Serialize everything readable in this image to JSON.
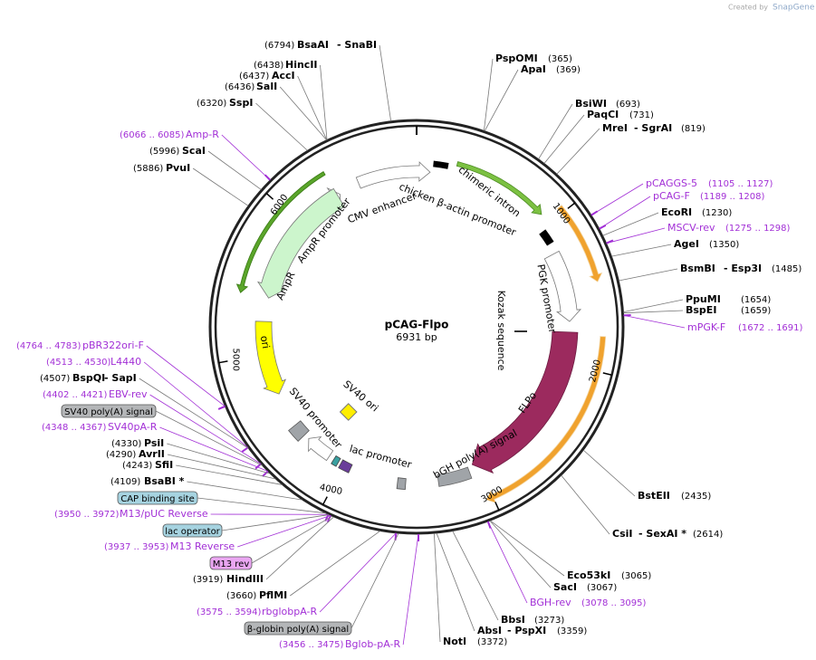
{
  "header": {
    "credit": "Created by",
    "brand": "SnapGene"
  },
  "map": {
    "name": "pCAG-Flpo",
    "length": "6931 bp",
    "ticks": [
      1000,
      2000,
      3000,
      4000,
      5000,
      6000
    ],
    "features": [
      "chicken β-actin promoter",
      "chimeric intron",
      "CMV enhancer",
      "AmpR promoter",
      "AmpR",
      "ori",
      "SV40 ori",
      "SV40 promoter",
      "lac promoter",
      "bGH poly(A) signal",
      "FLPo",
      "Kozak sequence",
      "PGK promoter"
    ]
  },
  "sites": [
    {
      "kind": "enzyme",
      "position": "(6794)",
      "names": [
        "BsaAI",
        "- SnaBI"
      ]
    },
    {
      "kind": "enzyme",
      "position": "(6438)",
      "names": [
        "HincII"
      ]
    },
    {
      "kind": "enzyme",
      "position": "(6437)",
      "names": [
        "AccI"
      ]
    },
    {
      "kind": "enzyme",
      "position": "(6436)",
      "names": [
        "SalI"
      ]
    },
    {
      "kind": "enzyme",
      "position": "(6320)",
      "names": [
        "SspI"
      ]
    },
    {
      "kind": "primer",
      "position": "(6066 .. 6085)",
      "names": [
        "Amp-R"
      ]
    },
    {
      "kind": "enzyme",
      "position": "(5996)",
      "names": [
        "ScaI"
      ]
    },
    {
      "kind": "enzyme",
      "position": "(5886)",
      "names": [
        "PvuI"
      ]
    },
    {
      "kind": "enzyme",
      "position": "(365)",
      "names": [
        "PspOMI"
      ]
    },
    {
      "kind": "enzyme",
      "position": "(369)",
      "names": [
        "ApaI"
      ]
    },
    {
      "kind": "enzyme",
      "position": "(693)",
      "names": [
        "BsiWI"
      ]
    },
    {
      "kind": "enzyme",
      "position": "(731)",
      "names": [
        "PaqCI"
      ]
    },
    {
      "kind": "enzyme",
      "position": "(819)",
      "names": [
        "MreI",
        "- SgrAI"
      ]
    },
    {
      "kind": "primer",
      "position": "(1105 .. 1127)",
      "names": [
        "pCAGGS-5"
      ]
    },
    {
      "kind": "primer",
      "position": "(1189 .. 1208)",
      "names": [
        "pCAG-F"
      ]
    },
    {
      "kind": "enzyme",
      "position": "(1230)",
      "names": [
        "EcoRI"
      ]
    },
    {
      "kind": "primer",
      "position": "(1275 .. 1298)",
      "names": [
        "MSCV-rev"
      ]
    },
    {
      "kind": "enzyme",
      "position": "(1350)",
      "names": [
        "AgeI"
      ]
    },
    {
      "kind": "enzyme",
      "position": "(1485)",
      "names": [
        "BsmBI",
        "- Esp3I"
      ]
    },
    {
      "kind": "enzyme",
      "position": "(1654)",
      "names": [
        "PpuMI"
      ]
    },
    {
      "kind": "enzyme",
      "position": "(1659)",
      "names": [
        "BspEI"
      ]
    },
    {
      "kind": "primer",
      "position": "(1672 .. 1691)",
      "names": [
        "mPGK-F"
      ]
    },
    {
      "kind": "enzyme",
      "position": "(2435)",
      "names": [
        "BstEII"
      ]
    },
    {
      "kind": "enzyme",
      "position": "(2614)",
      "names": [
        "CsiI",
        "- SexAI *"
      ]
    },
    {
      "kind": "enzyme",
      "position": "(3065)",
      "names": [
        "Eco53kI"
      ]
    },
    {
      "kind": "enzyme",
      "position": "(3067)",
      "names": [
        "SacI"
      ]
    },
    {
      "kind": "primer",
      "position": "(3078 .. 3095)",
      "names": [
        "BGH-rev"
      ]
    },
    {
      "kind": "enzyme",
      "position": "(3273)",
      "names": [
        "BbsI"
      ]
    },
    {
      "kind": "enzyme",
      "position": "(3359)",
      "names": [
        "AbsI",
        "- PspXI"
      ]
    },
    {
      "kind": "enzyme",
      "position": "(3372)",
      "names": [
        "NotI"
      ]
    },
    {
      "kind": "primer",
      "position": "(4764 .. 4783)",
      "names": [
        "pBR322ori-F"
      ]
    },
    {
      "kind": "primer",
      "position": "(4513 .. 4530)",
      "names": [
        "L4440"
      ]
    },
    {
      "kind": "enzyme",
      "position": "(4507)",
      "names": [
        "BspQI",
        "- SapI"
      ]
    },
    {
      "kind": "primer",
      "position": "(4402 .. 4421)",
      "names": [
        "EBV-rev"
      ]
    },
    {
      "kind": "box",
      "color": "#b4b6b8",
      "names": [
        "SV40 poly(A) signal"
      ]
    },
    {
      "kind": "primer",
      "position": "(4348 .. 4367)",
      "names": [
        "SV40pA-R"
      ]
    },
    {
      "kind": "enzyme",
      "position": "(4330)",
      "names": [
        "PsiI"
      ]
    },
    {
      "kind": "enzyme",
      "position": "(4290)",
      "names": [
        "AvrII"
      ]
    },
    {
      "kind": "enzyme",
      "position": "(4243)",
      "names": [
        "SfiI"
      ]
    },
    {
      "kind": "enzyme",
      "position": "(4109)",
      "names": [
        "BsaBI *"
      ]
    },
    {
      "kind": "box",
      "color": "#a6d3e0",
      "names": [
        "CAP binding site"
      ]
    },
    {
      "kind": "primer",
      "position": "(3950 .. 3972)",
      "names": [
        "M13/pUC Reverse"
      ]
    },
    {
      "kind": "box",
      "color": "#a6d3e0",
      "names": [
        "lac operator"
      ]
    },
    {
      "kind": "primer",
      "position": "(3937 .. 3953)",
      "names": [
        "M13 Reverse"
      ]
    },
    {
      "kind": "box",
      "color": "#eaa6f2",
      "names": [
        "M13 rev"
      ]
    },
    {
      "kind": "enzyme",
      "position": "(3919)",
      "names": [
        "HindIII"
      ]
    },
    {
      "kind": "enzyme",
      "position": "(3660)",
      "names": [
        "PflMI"
      ]
    },
    {
      "kind": "primer",
      "position": "(3575 .. 3594)",
      "names": [
        "rbglobpA-R"
      ]
    },
    {
      "kind": "box",
      "color": "#b4b6b8",
      "names": [
        "β-globin poly(A) signal"
      ]
    },
    {
      "kind": "primer",
      "position": "(3456 .. 3475)",
      "names": [
        "Bglob-pA-R"
      ]
    }
  ]
}
